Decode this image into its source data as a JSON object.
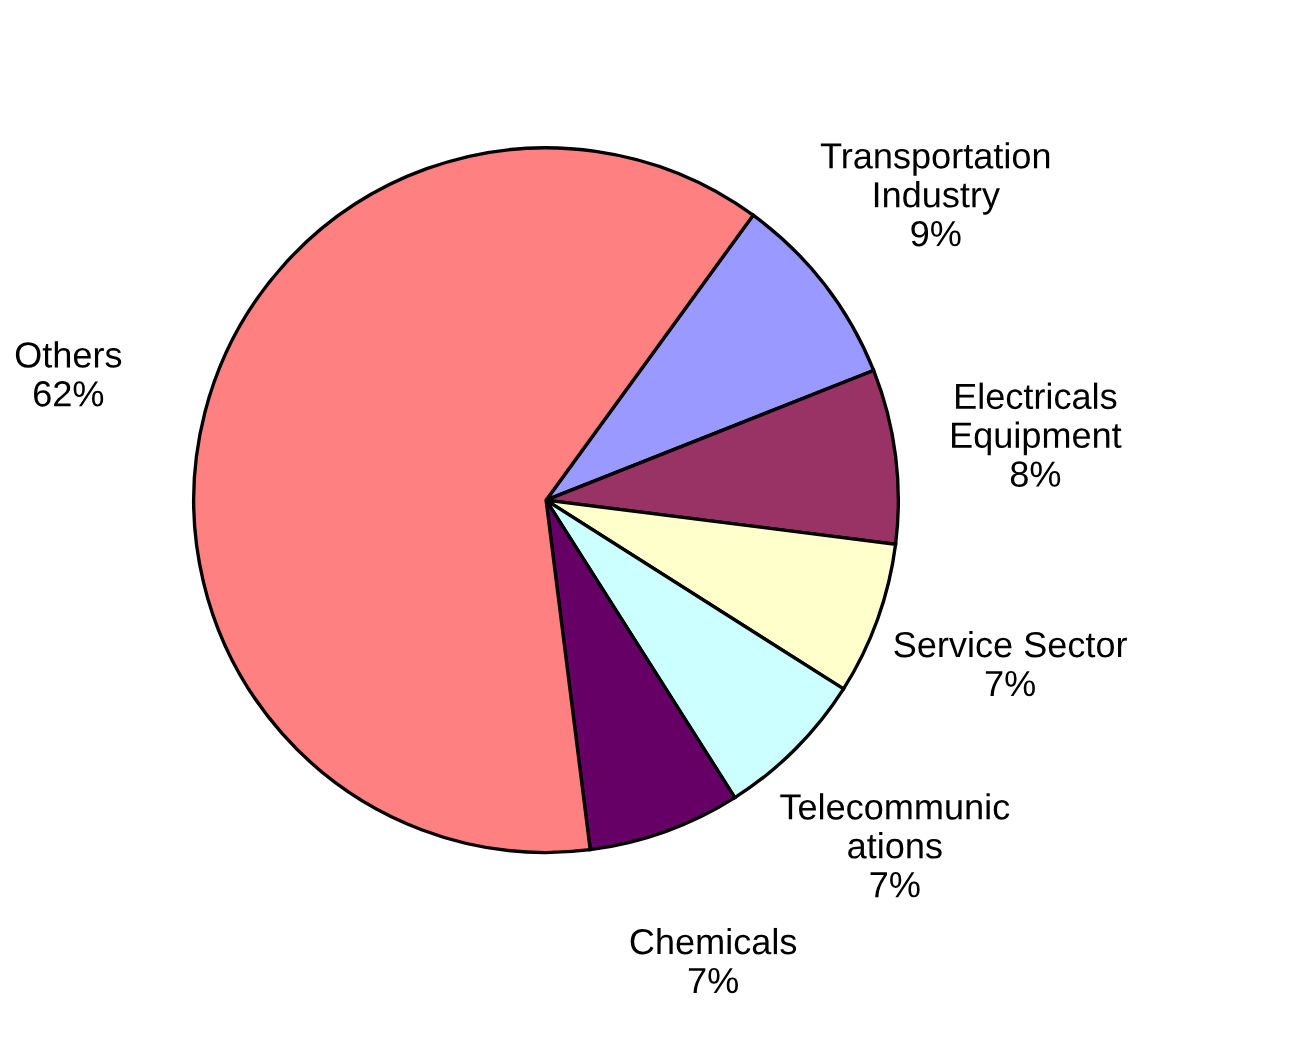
{
  "chart_data": {
    "type": "pie",
    "categories": [
      "Transportation\nIndustry",
      "Electricals\nEquipment",
      "Service Sector",
      "Telecommunic\nations",
      "Chemicals",
      "Others"
    ],
    "values": [
      9,
      8,
      7,
      7,
      7,
      62
    ],
    "colors": [
      "#9999ff",
      "#993366",
      "#ffffcc",
      "#ccffff",
      "#660066",
      "#ff8080"
    ],
    "value_labels": [
      "9%",
      "8%",
      "7%",
      "7%",
      "7%",
      "62%"
    ],
    "legend": false
  }
}
